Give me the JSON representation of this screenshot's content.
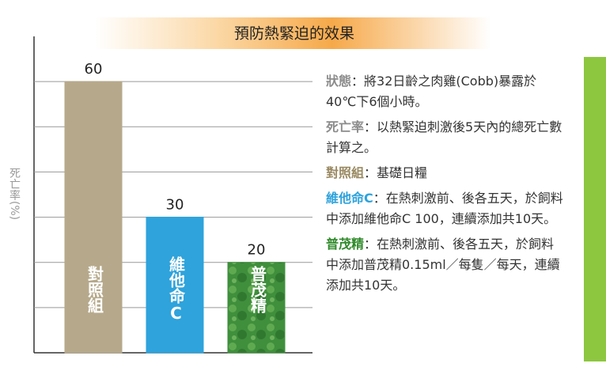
{
  "chart_data": {
    "type": "bar",
    "title": "預防熱緊迫的效果",
    "y_label": "死亡率(%)",
    "categories": [
      "對照組",
      "維他命C",
      "普茂精"
    ],
    "values": [
      60,
      30,
      20
    ],
    "colors": [
      "#b6a98b",
      "#2ea3dc",
      "#3f8f3c"
    ],
    "ylim": [
      0,
      70
    ],
    "yticks": [
      10,
      20,
      30,
      40,
      50,
      60
    ],
    "grid": true
  },
  "notes": [
    {
      "label": "狀態",
      "text": "：將32日齡之肉雞(Cobb)暴露於40℃下6個小時。"
    },
    {
      "label": "死亡率",
      "text": "：以熱緊迫刺激後5天內的總死亡數計算之。"
    },
    {
      "label": "對照組",
      "text": "：基礎日糧"
    },
    {
      "label": "維他命C",
      "text": "：在熱刺激前、後各五天，於飼料中添加維他命C 100，連續添加共10天。"
    },
    {
      "label": "普茂精",
      "text": "：在熱刺激前、後各五天，於飼料中添加普茂精0.15ml／每隻／每天，連續添加共10天。"
    }
  ]
}
